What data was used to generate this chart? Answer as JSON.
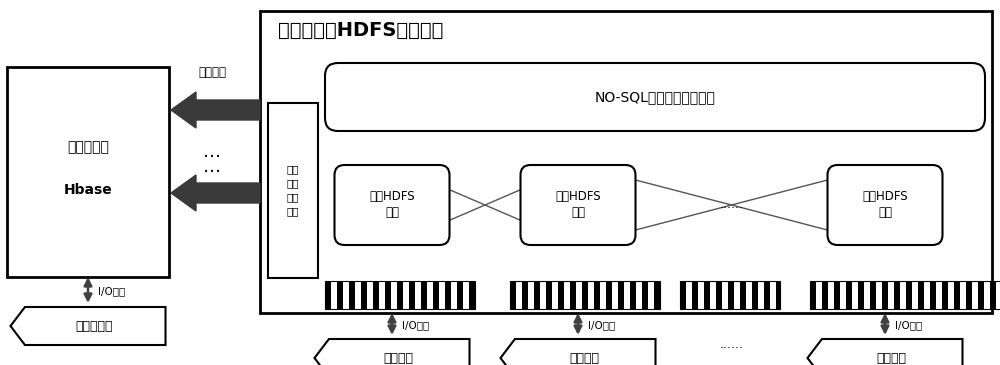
{
  "bg_color": "#ffffff",
  "title_main": "非结构数据HDFS存储管理",
  "hbase_label1": "海量数据库",
  "hbase_label2": "Hbase",
  "feature_extract": "特征抽取",
  "file_interface": "文件\n特征\n访问\n接口",
  "nosql_label": "NO-SQL非结构文件索引库",
  "text_hdfs": "文本HDFS\n存储",
  "image_hdfs": "图片HDFS\n存储",
  "video_hdfs": "视频HDFS\n存储",
  "io_label": "I/O通道",
  "structured_data": "结构化数据",
  "text_data": "文本数据",
  "image_data": "图片数据",
  "video_data": "视频数据",
  "dots_hdfs": "......",
  "dots_data": "......"
}
